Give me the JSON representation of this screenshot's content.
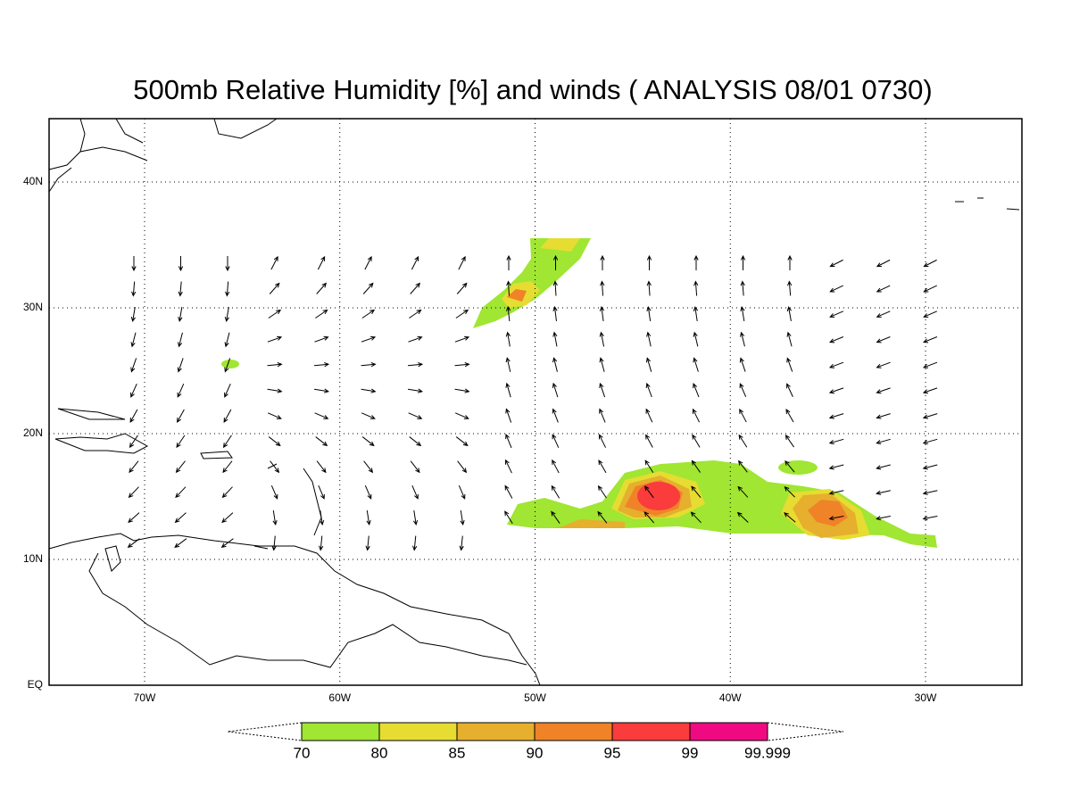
{
  "title": "500mb Relative Humidity [%] and winds ( ANALYSIS 08/01 0730)",
  "map": {
    "lon_labels": [
      "70W",
      "60W",
      "50W",
      "40W",
      "30W"
    ],
    "lat_labels": [
      "EQ",
      "10N",
      "20N",
      "30N",
      "40N"
    ]
  },
  "colorbar": {
    "labels": [
      "70",
      "80",
      "85",
      "90",
      "95",
      "99",
      "99.999"
    ],
    "colors": [
      "#a0e632",
      "#e6dc32",
      "#e6af2d",
      "#f08228",
      "#fa3c3c",
      "#f00a82"
    ]
  }
}
